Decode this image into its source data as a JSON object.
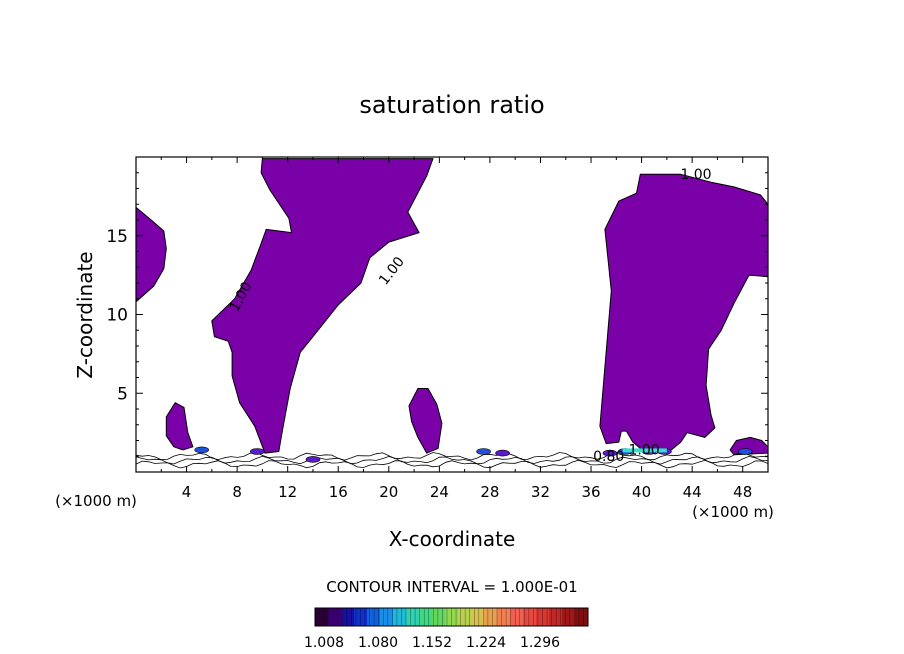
{
  "chart_data": {
    "type": "contour",
    "title": "saturation ratio",
    "xlabel": "X-coordinate",
    "ylabel": "Z-coordinate",
    "x_units_left": "(×1000 m)",
    "x_units_right": "(×1000 m)",
    "xlim": [
      0,
      50
    ],
    "ylim": [
      0,
      20
    ],
    "x_ticks": [
      4,
      8,
      12,
      16,
      20,
      24,
      28,
      32,
      36,
      40,
      44,
      48
    ],
    "y_ticks": [
      5,
      10,
      15
    ],
    "fill_color": "#7a00a8",
    "contour_labels": [
      {
        "text": "1.00",
        "x": 8.6,
        "z": 11.0,
        "angle": -62
      },
      {
        "text": "1.00",
        "x": 20.5,
        "z": 12.6,
        "angle": -52
      },
      {
        "text": "1.00",
        "x": 44.3,
        "z": 18.6,
        "angle": 0
      },
      {
        "text": "0.80",
        "x": 37.4,
        "z": 0.7,
        "angle": 0
      },
      {
        "text": "1.00",
        "x": 40.2,
        "z": 1.1,
        "angle": 0
      }
    ],
    "regions": [
      {
        "name": "left-edge-cloud",
        "points": [
          [
            0,
            16.8
          ],
          [
            1.2,
            16.0
          ],
          [
            2.2,
            15.3
          ],
          [
            2.4,
            14.2
          ],
          [
            2.2,
            12.9
          ],
          [
            1.4,
            11.8
          ],
          [
            0,
            10.8
          ]
        ]
      },
      {
        "name": "central-tower-cloud",
        "points": [
          [
            10,
            19.9
          ],
          [
            23.5,
            19.9
          ],
          [
            23,
            18.8
          ],
          [
            21.5,
            16.5
          ],
          [
            22.4,
            15.2
          ],
          [
            20,
            14.6
          ],
          [
            18.5,
            13.6
          ],
          [
            17.8,
            12.0
          ],
          [
            16,
            10.6
          ],
          [
            14.5,
            9.1
          ],
          [
            13,
            7.6
          ],
          [
            12.2,
            5.3
          ],
          [
            11.6,
            2.7
          ],
          [
            11.3,
            1.3
          ],
          [
            10.2,
            1.2
          ],
          [
            9.4,
            2.9
          ],
          [
            8.2,
            4.4
          ],
          [
            7.6,
            6.1
          ],
          [
            7.6,
            7.6
          ],
          [
            7.3,
            8.3
          ],
          [
            6.2,
            8.6
          ],
          [
            6.0,
            9.6
          ],
          [
            7.8,
            11.0
          ],
          [
            9.1,
            12.8
          ],
          [
            9.8,
            14.3
          ],
          [
            10.3,
            15.4
          ],
          [
            12.3,
            15.2
          ],
          [
            12.1,
            16.1
          ],
          [
            10.6,
            17.9
          ],
          [
            9.9,
            19.0
          ]
        ]
      },
      {
        "name": "small-left-cell",
        "points": [
          [
            2.4,
            3.5
          ],
          [
            3.1,
            4.4
          ],
          [
            3.8,
            4.1
          ],
          [
            4.1,
            2.5
          ],
          [
            4.5,
            1.6
          ],
          [
            3.7,
            1.4
          ],
          [
            3.0,
            1.6
          ],
          [
            2.4,
            2.3
          ]
        ]
      },
      {
        "name": "small-center-cell",
        "points": [
          [
            21.6,
            4.2
          ],
          [
            22.3,
            5.3
          ],
          [
            23.1,
            5.3
          ],
          [
            23.8,
            4.3
          ],
          [
            24.2,
            3.1
          ],
          [
            23.9,
            1.5
          ],
          [
            23.0,
            1.2
          ],
          [
            22.3,
            2.2
          ],
          [
            21.8,
            3.2
          ]
        ]
      },
      {
        "name": "right-tower-cloud",
        "points": [
          [
            36.7,
            2.9
          ],
          [
            37.6,
            11.5
          ],
          [
            37.1,
            15.4
          ],
          [
            38.2,
            17.2
          ],
          [
            39.6,
            17.7
          ],
          [
            39.9,
            18.9
          ],
          [
            43.1,
            18.9
          ],
          [
            45.5,
            18.4
          ],
          [
            47.3,
            18.1
          ],
          [
            49.4,
            17.6
          ],
          [
            50,
            17.0
          ],
          [
            50,
            12.4
          ],
          [
            48.5,
            12.5
          ],
          [
            47.3,
            10.7
          ],
          [
            46.3,
            9.0
          ],
          [
            45.3,
            7.8
          ],
          [
            45.1,
            5.5
          ],
          [
            45.5,
            3.6
          ],
          [
            45.8,
            2.8
          ],
          [
            45.0,
            2.2
          ],
          [
            43.6,
            2.5
          ],
          [
            43.1,
            1.9
          ],
          [
            42.2,
            1.3
          ],
          [
            40.2,
            1.3
          ],
          [
            39.3,
            1.9
          ],
          [
            38.8,
            2.6
          ],
          [
            38.4,
            2.6
          ],
          [
            38.2,
            1.9
          ],
          [
            37.2,
            1.8
          ]
        ]
      },
      {
        "name": "right-edge-patch",
        "points": [
          [
            47.0,
            1.4
          ],
          [
            47.5,
            2.0
          ],
          [
            48.6,
            2.2
          ],
          [
            49.5,
            2.0
          ],
          [
            50,
            1.6
          ],
          [
            50,
            1.2
          ],
          [
            47.3,
            1.1
          ]
        ]
      }
    ],
    "colorbar": {
      "title": "CONTOUR INTERVAL = 1.000E-01",
      "tick_labels": [
        "1.008",
        "1.080",
        "1.152",
        "1.224",
        "1.296"
      ],
      "colors": [
        "#2a0035",
        "#3a0070",
        "#1a10a0",
        "#1030c8",
        "#1060e0",
        "#1890e8",
        "#20b8d8",
        "#30d0b0",
        "#40d880",
        "#60d860",
        "#90d850",
        "#b8d050",
        "#d8c050",
        "#e8a050",
        "#f08050",
        "#f06050",
        "#e84840",
        "#d83830",
        "#c02828",
        "#a01818",
        "#801010"
      ]
    }
  }
}
